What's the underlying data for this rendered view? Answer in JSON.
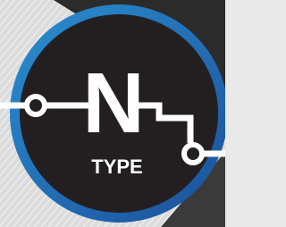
{
  "logo": {
    "letter": "N",
    "label": "TYPE"
  }
}
